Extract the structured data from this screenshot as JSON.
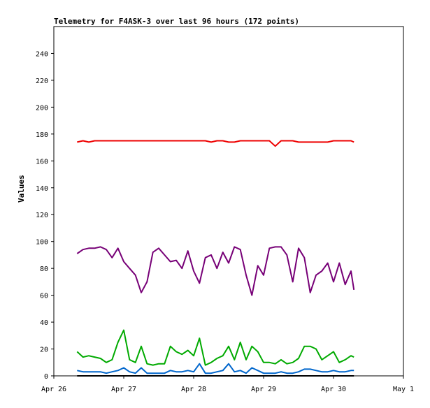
{
  "chart_data": {
    "type": "line",
    "title": "Telemetry for F4ASK-3 over last 96 hours (172 points)",
    "xlabel": "",
    "ylabel": "Values",
    "ylim": [
      0,
      260
    ],
    "yticks": [
      0,
      20,
      40,
      60,
      80,
      100,
      120,
      140,
      160,
      180,
      200,
      220,
      240
    ],
    "xlim": [
      "Apr 26",
      "May 1"
    ],
    "xticks": [
      "Apr 26",
      "Apr 27",
      "Apr 28",
      "Apr 29",
      "Apr 30",
      "May 1"
    ],
    "grid": false,
    "legend": "none",
    "x": [
      "Apr 26 08:00",
      "Apr 26 10:00",
      "Apr 26 12:00",
      "Apr 26 14:00",
      "Apr 26 16:00",
      "Apr 26 18:00",
      "Apr 26 20:00",
      "Apr 26 22:00",
      "Apr 27 00:00",
      "Apr 27 02:00",
      "Apr 27 04:00",
      "Apr 27 06:00",
      "Apr 27 08:00",
      "Apr 27 10:00",
      "Apr 27 12:00",
      "Apr 27 14:00",
      "Apr 27 16:00",
      "Apr 27 18:00",
      "Apr 27 20:00",
      "Apr 27 22:00",
      "Apr 28 00:00",
      "Apr 28 02:00",
      "Apr 28 04:00",
      "Apr 28 06:00",
      "Apr 28 08:00",
      "Apr 28 10:00",
      "Apr 28 12:00",
      "Apr 28 14:00",
      "Apr 28 16:00",
      "Apr 28 18:00",
      "Apr 28 20:00",
      "Apr 28 22:00",
      "Apr 29 00:00",
      "Apr 29 02:00",
      "Apr 29 04:00",
      "Apr 29 06:00",
      "Apr 29 08:00",
      "Apr 29 10:00",
      "Apr 29 12:00",
      "Apr 29 14:00",
      "Apr 29 16:00",
      "Apr 29 18:00",
      "Apr 29 20:00",
      "Apr 29 22:00",
      "Apr 30 00:00",
      "Apr 30 02:00",
      "Apr 30 04:00",
      "Apr 30 06:00",
      "Apr 30 07:00"
    ],
    "series": [
      {
        "color": "#ee0000",
        "values": [
          174,
          175,
          174,
          175,
          175,
          175,
          175,
          175,
          175,
          175,
          175,
          175,
          175,
          175,
          175,
          175,
          175,
          175,
          175,
          175,
          175,
          175,
          175,
          174,
          175,
          175,
          174,
          174,
          175,
          175,
          175,
          175,
          175,
          175,
          171,
          175,
          175,
          175,
          174,
          174,
          174,
          174,
          174,
          174,
          175,
          175,
          175,
          175,
          174
        ]
      },
      {
        "color": "#770077",
        "values": [
          91,
          94,
          95,
          95,
          96,
          94,
          88,
          95,
          85,
          80,
          75,
          62,
          70,
          92,
          95,
          90,
          85,
          86,
          80,
          93,
          78,
          69,
          88,
          90,
          80,
          92,
          84,
          96,
          94,
          75,
          60,
          82,
          75,
          95,
          96,
          96,
          90,
          70,
          95,
          88,
          62,
          75,
          78,
          84,
          70,
          84,
          68,
          78,
          64
        ]
      },
      {
        "color": "#00aa00",
        "values": [
          18,
          14,
          15,
          14,
          13,
          10,
          12,
          25,
          34,
          12,
          10,
          22,
          9,
          8,
          9,
          9,
          22,
          18,
          16,
          19,
          15,
          28,
          8,
          10,
          13,
          15,
          22,
          12,
          25,
          12,
          22,
          18,
          10,
          10,
          9,
          12,
          9,
          10,
          13,
          22,
          22,
          20,
          12,
          15,
          18,
          10,
          12,
          15,
          14
        ]
      },
      {
        "color": "#0066cc",
        "values": [
          4,
          3,
          3,
          3,
          3,
          2,
          3,
          4,
          6,
          3,
          2,
          6,
          2,
          2,
          2,
          2,
          4,
          3,
          3,
          4,
          3,
          9,
          2,
          2,
          3,
          4,
          9,
          3,
          4,
          2,
          6,
          4,
          2,
          2,
          2,
          3,
          2,
          2,
          3,
          5,
          5,
          4,
          3,
          3,
          4,
          3,
          3,
          4,
          4
        ]
      },
      {
        "color": "#000000",
        "values": [
          0,
          0,
          0,
          0,
          0,
          0,
          0,
          0,
          0,
          0,
          0,
          0,
          0,
          0,
          0,
          0,
          0,
          0,
          0,
          0,
          0,
          0,
          0,
          0,
          0,
          0,
          0,
          0,
          0,
          0,
          0,
          0,
          0,
          0,
          0,
          0,
          0,
          0,
          0,
          0,
          0,
          0,
          0,
          0,
          0,
          0,
          0,
          0,
          0
        ]
      }
    ]
  }
}
